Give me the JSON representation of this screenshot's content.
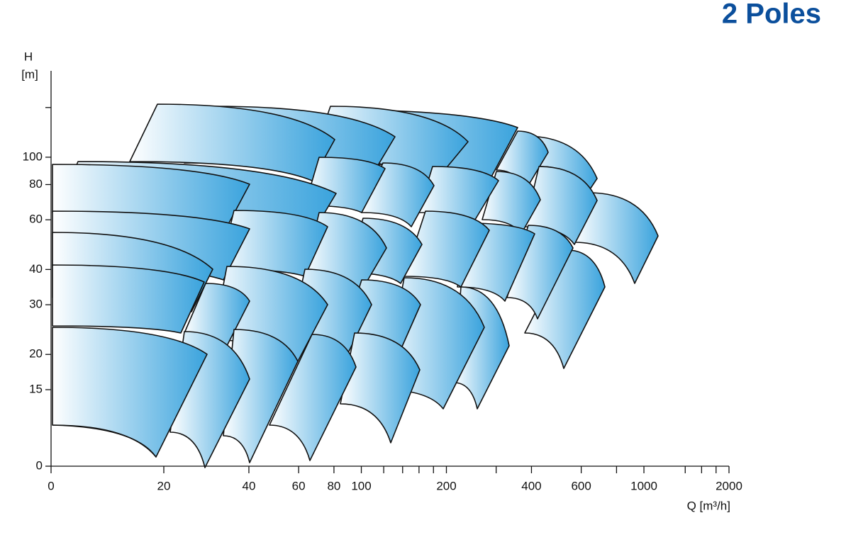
{
  "chart_data": {
    "type": "coverage",
    "title": "2 Poles",
    "y_label": "H",
    "y_unit": "[m]",
    "x_label": "Q  [m³/h]",
    "xscale": "log",
    "yscale": "log",
    "xlim": [
      0,
      2000
    ],
    "ylim": [
      0,
      200
    ],
    "xticks": [
      0,
      20,
      40,
      60,
      80,
      100,
      200,
      400,
      600,
      1000,
      2000
    ],
    "xminorticks": [
      120,
      140,
      160,
      180,
      300,
      800,
      1400,
      1600,
      1800
    ],
    "yticks": [
      0,
      15,
      20,
      30,
      40,
      60,
      80,
      100
    ],
    "yminorticks": [
      150
    ],
    "title_color": "#0b4f9c",
    "fill_color": "#3aa3dd"
  }
}
